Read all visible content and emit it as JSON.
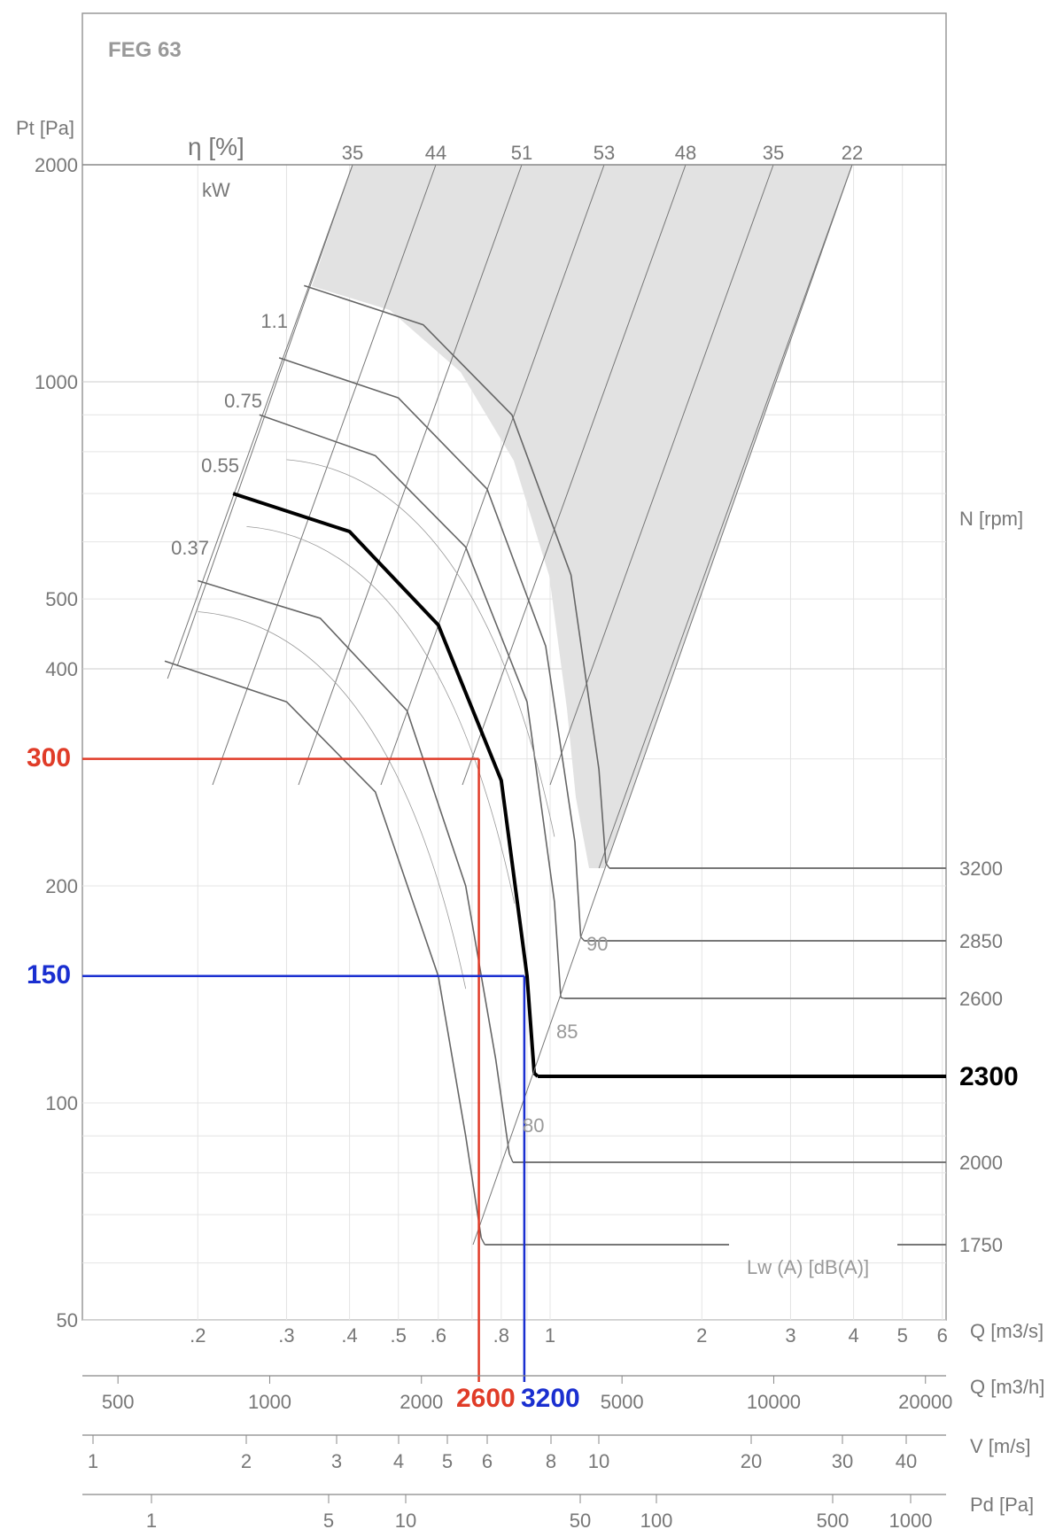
{
  "chart_data": {
    "type": "line",
    "title": "FEG 63",
    "xlabel": "Q [m3/s]",
    "ylabel": "Pt [Pa]",
    "xscale": "log",
    "yscale": "log",
    "xlim": [
      0.118,
      6.1
    ],
    "ylim": [
      50,
      2000
    ],
    "grid": true,
    "y_ticks": [
      {
        "value": 2000,
        "label": "2000"
      },
      {
        "value": 1000,
        "label": "1000"
      },
      {
        "value": 500,
        "label": "500"
      },
      {
        "value": 400,
        "label": "400"
      },
      {
        "value": 200,
        "label": "200"
      },
      {
        "value": 100,
        "label": "100"
      },
      {
        "value": 50,
        "label": "50"
      }
    ],
    "x_ticks_m3s": [
      {
        "value": 0.2,
        "label": ".2"
      },
      {
        "value": 0.3,
        "label": ".3"
      },
      {
        "value": 0.4,
        "label": ".4"
      },
      {
        "value": 0.5,
        "label": ".5"
      },
      {
        "value": 0.6,
        "label": ".6"
      },
      {
        "value": 0.8,
        "label": ".8"
      },
      {
        "value": 1,
        "label": "1"
      },
      {
        "value": 2,
        "label": "2"
      },
      {
        "value": 3,
        "label": "3"
      },
      {
        "value": 4,
        "label": "4"
      },
      {
        "value": 5,
        "label": "5"
      },
      {
        "value": 6,
        "label": "6"
      }
    ],
    "secondary_axes": [
      {
        "label": "Q [m3/h]",
        "ticks": [
          "500",
          "1000",
          "2000",
          "5000",
          "10000",
          "20000"
        ]
      },
      {
        "label": "V [m/s]",
        "ticks": [
          "1",
          "2",
          "3",
          "4",
          "5",
          "6",
          "8",
          "10",
          "20",
          "30",
          "40"
        ]
      },
      {
        "label": "Pd [Pa]",
        "ticks": [
          "1",
          "5",
          "10",
          "50",
          "100",
          "500",
          "1000"
        ]
      }
    ],
    "efficiency_label": "η [%]",
    "efficiency_values": [
      "35",
      "44",
      "51",
      "53",
      "48",
      "35",
      "22"
    ],
    "power_label": "kW",
    "power_values": [
      "1.1",
      "0.75",
      "0.55",
      "0.37"
    ],
    "rpm_label": "N [rpm]",
    "sound_label": "Lw (A) [dB(A)]",
    "sound_values": [
      "90",
      "85",
      "80"
    ],
    "series": [
      {
        "name": "1750 rpm",
        "rpm": 1750,
        "points": [
          [
            0.172,
            410
          ],
          [
            0.3,
            360
          ],
          [
            0.45,
            270
          ],
          [
            0.6,
            150
          ],
          [
            0.68,
            90
          ],
          [
            0.73,
            65
          ]
        ]
      },
      {
        "name": "2000 rpm",
        "rpm": 2000,
        "points": [
          [
            0.2,
            530
          ],
          [
            0.35,
            470
          ],
          [
            0.52,
            350
          ],
          [
            0.68,
            200
          ],
          [
            0.78,
            115
          ],
          [
            0.83,
            85
          ]
        ]
      },
      {
        "name": "2300 rpm",
        "rpm": 2300,
        "highlighted": true,
        "points": [
          [
            0.235,
            700
          ],
          [
            0.4,
            620
          ],
          [
            0.6,
            460
          ],
          [
            0.8,
            280
          ],
          [
            0.9,
            150
          ],
          [
            0.93,
            110
          ]
        ]
      },
      {
        "name": "2600 rpm",
        "rpm": 2600,
        "points": [
          [
            0.265,
            900
          ],
          [
            0.45,
            790
          ],
          [
            0.68,
            590
          ],
          [
            0.9,
            360
          ],
          [
            1.02,
            190
          ],
          [
            1.05,
            140
          ]
        ]
      },
      {
        "name": "2850 rpm",
        "rpm": 2850,
        "points": [
          [
            0.29,
            1080
          ],
          [
            0.5,
            950
          ],
          [
            0.75,
            710
          ],
          [
            0.98,
            430
          ],
          [
            1.12,
            230
          ],
          [
            1.15,
            170
          ]
        ]
      },
      {
        "name": "3200 rpm",
        "rpm": 3200,
        "points": [
          [
            0.325,
            1360
          ],
          [
            0.56,
            1200
          ],
          [
            0.84,
            900
          ],
          [
            1.1,
            540
          ],
          [
            1.25,
            290
          ],
          [
            1.29,
            215
          ]
        ]
      }
    ],
    "operating_points": [
      {
        "label": "2600",
        "q_m3h": 2600,
        "pt": 300,
        "color": "#e03c28"
      },
      {
        "label": "3200",
        "q_m3h": 3200,
        "pt": 150,
        "color": "#1a2fd0"
      }
    ],
    "selected_rpm": "2300",
    "rpm_lines": [
      "3200",
      "2850",
      "2600",
      "2300",
      "2000",
      "1750"
    ]
  },
  "title": "FEG 63",
  "labels": {
    "pt_axis": "Pt [Pa]",
    "eta": "η [%]",
    "kw": "kW",
    "rpm": "N [rpm]",
    "lw": "Lw (A) [dB(A)]",
    "q_m3s": "Q [m3/s]",
    "q_m3h": "Q [m3/h]",
    "v": "V [m/s]",
    "pd": "Pd [Pa]"
  },
  "highlight": {
    "pt_red": "300",
    "pt_blue": "150",
    "q_red": "2600",
    "q_blue": "3200",
    "rpm_selected": "2300",
    "red": "#e03c28",
    "blue": "#1a2fd0"
  }
}
